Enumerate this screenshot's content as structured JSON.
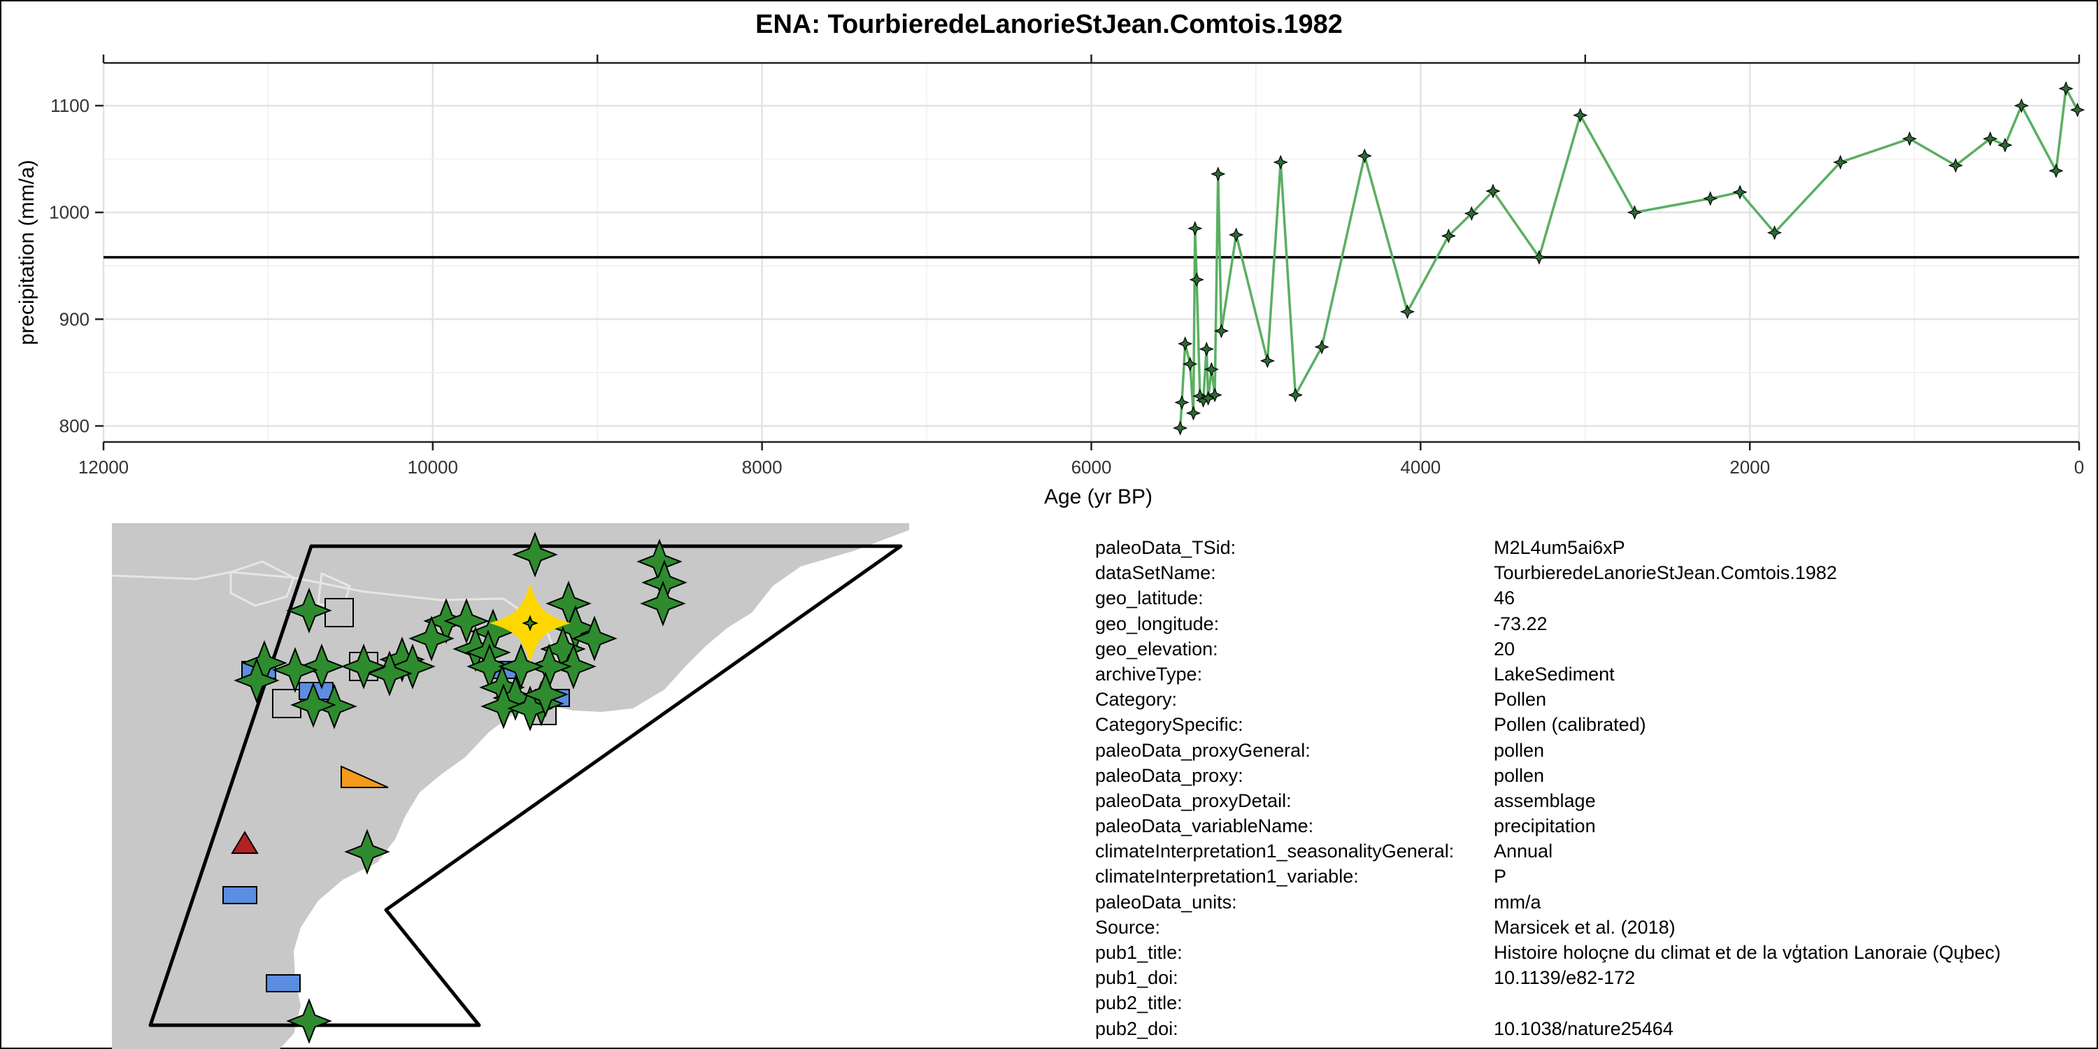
{
  "chart_data": {
    "type": "line",
    "title": "ENA: TourbieredeLanorieStJean.Comtois.1982",
    "xlabel": "Age (yr BP)",
    "ylabel": "precipitation (mm/a)",
    "x_reversed": true,
    "xlim": [
      12000,
      0
    ],
    "ylim": [
      785,
      1140
    ],
    "x_ticks": [
      12000,
      10000,
      8000,
      6000,
      4000,
      2000,
      0
    ],
    "y_ticks": [
      800,
      900,
      1000,
      1100
    ],
    "mean_line": 958,
    "grid": true,
    "series": [
      {
        "color": "#5BAF62",
        "points": [
          [
            5460,
            798
          ],
          [
            5450,
            822
          ],
          [
            5430,
            877
          ],
          [
            5400,
            858
          ],
          [
            5380,
            812
          ],
          [
            5370,
            985
          ],
          [
            5360,
            937
          ],
          [
            5340,
            828
          ],
          [
            5320,
            824
          ],
          [
            5300,
            872
          ],
          [
            5290,
            826
          ],
          [
            5270,
            853
          ],
          [
            5250,
            829
          ],
          [
            5230,
            1036
          ],
          [
            5210,
            889
          ],
          [
            5120,
            979
          ],
          [
            4930,
            861
          ],
          [
            4850,
            1047
          ],
          [
            4760,
            829
          ],
          [
            4600,
            874
          ],
          [
            4340,
            1053
          ],
          [
            4080,
            907
          ],
          [
            3830,
            978
          ],
          [
            3690,
            999
          ],
          [
            3560,
            1020
          ],
          [
            3280,
            958
          ],
          [
            3030,
            1091
          ],
          [
            2700,
            1000
          ],
          [
            2240,
            1013
          ],
          [
            2060,
            1019
          ],
          [
            1850,
            981
          ],
          [
            1450,
            1047
          ],
          [
            1030,
            1069
          ],
          [
            750,
            1044
          ],
          [
            540,
            1069
          ],
          [
            450,
            1063
          ],
          [
            350,
            1100
          ],
          [
            140,
            1039
          ],
          [
            80,
            1116
          ],
          [
            10,
            1096
          ]
        ]
      }
    ]
  },
  "map": {
    "land_color": "#C8C8C8",
    "ocean_color": "#FFFFFF",
    "legend_colors": {
      "target_site": "#FFD700",
      "pollen_site": "#2E8B2E",
      "lake_site": "#5B8DE0",
      "other_site": "#C8C8C8",
      "triangle_site": "#B22222",
      "wedge_site": "#F59A1B"
    }
  },
  "info": [
    {
      "key": "paleoData_TSid:",
      "value": "M2L4um5ai6xP"
    },
    {
      "key": "dataSetName:",
      "value": "TourbieredeLanorieStJean.Comtois.1982"
    },
    {
      "key": "geo_latitude:",
      "value": "46"
    },
    {
      "key": "geo_longitude:",
      "value": "-73.22"
    },
    {
      "key": "geo_elevation:",
      "value": "20"
    },
    {
      "key": "archiveType:",
      "value": "LakeSediment"
    },
    {
      "key": "Category:",
      "value": "Pollen"
    },
    {
      "key": "CategorySpecific:",
      "value": "Pollen (calibrated)"
    },
    {
      "key": "paleoData_proxyGeneral:",
      "value": "pollen"
    },
    {
      "key": "paleoData_proxy:",
      "value": "pollen"
    },
    {
      "key": "paleoData_proxyDetail:",
      "value": "assemblage"
    },
    {
      "key": "paleoData_variableName:",
      "value": "precipitation"
    },
    {
      "key": "climateInterpretation1_seasonalityGeneral:",
      "value": "Annual"
    },
    {
      "key": "climateInterpretation1_variable:",
      "value": "P"
    },
    {
      "key": "paleoData_units:",
      "value": "mm/a"
    },
    {
      "key": "Source:",
      "value": "Marsicek et al. (2018)"
    },
    {
      "key": "pub1_title:",
      "value": "Histoire holoçne du climat et de la vģtation    Lanoraie (Qųbec)"
    },
    {
      "key": "pub1_doi:",
      "value": "10.1139/e82-172"
    },
    {
      "key": "pub2_title:",
      "value": ""
    },
    {
      "key": "pub2_doi:",
      "value": "10.1038/nature25464"
    }
  ]
}
